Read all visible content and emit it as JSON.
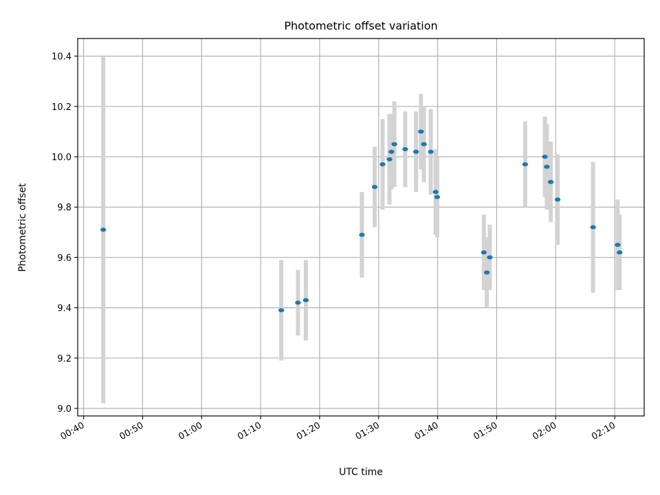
{
  "chart_data": {
    "type": "scatter",
    "title": "Photometric offset variation",
    "xlabel": "UTC time",
    "ylabel": "Photometric offset",
    "xlim": [
      "00:39",
      "02:15"
    ],
    "ylim": [
      8.97,
      10.47
    ],
    "x_ticks": [
      "00:40",
      "00:50",
      "01:00",
      "01:10",
      "01:20",
      "01:30",
      "01:40",
      "01:50",
      "02:00",
      "02:10"
    ],
    "y_ticks": [
      9.0,
      9.2,
      9.4,
      9.6,
      9.8,
      10.0,
      10.2,
      10.4
    ],
    "grid": true,
    "colors": {
      "points": "#1f77b4",
      "errorbars": "#d3d3d3",
      "grid": "#b0b0b0"
    },
    "series": [
      {
        "points": [
          {
            "x": "00:43:20",
            "y": 9.71,
            "err": 0.69
          },
          {
            "x": "01:13:30",
            "y": 9.39,
            "err": 0.2
          },
          {
            "x": "01:16:20",
            "y": 9.42,
            "err": 0.13
          },
          {
            "x": "01:17:40",
            "y": 9.43,
            "err": 0.16
          },
          {
            "x": "01:27:10",
            "y": 9.69,
            "err": 0.17
          },
          {
            "x": "01:29:20",
            "y": 9.88,
            "err": 0.16
          },
          {
            "x": "01:30:40",
            "y": 9.97,
            "err": 0.18
          },
          {
            "x": "01:31:50",
            "y": 9.99,
            "err": 0.18
          },
          {
            "x": "01:32:10",
            "y": 10.02,
            "err": 0.15
          },
          {
            "x": "01:32:40",
            "y": 10.05,
            "err": 0.17
          },
          {
            "x": "01:34:30",
            "y": 10.03,
            "err": 0.15
          },
          {
            "x": "01:36:20",
            "y": 10.02,
            "err": 0.16
          },
          {
            "x": "01:37:10",
            "y": 10.1,
            "err": 0.15
          },
          {
            "x": "01:37:40",
            "y": 10.05,
            "err": 0.15
          },
          {
            "x": "01:38:50",
            "y": 10.02,
            "err": 0.17
          },
          {
            "x": "01:39:40",
            "y": 9.86,
            "err": 0.17
          },
          {
            "x": "01:39:55",
            "y": 9.84,
            "err": 0.16
          },
          {
            "x": "01:47:50",
            "y": 9.62,
            "err": 0.15
          },
          {
            "x": "01:48:20",
            "y": 9.54,
            "err": 0.14
          },
          {
            "x": "01:48:50",
            "y": 9.6,
            "err": 0.13
          },
          {
            "x": "01:54:50",
            "y": 9.97,
            "err": 0.17
          },
          {
            "x": "01:58:10",
            "y": 10.0,
            "err": 0.16
          },
          {
            "x": "01:58:30",
            "y": 9.96,
            "err": 0.17
          },
          {
            "x": "01:59:10",
            "y": 9.9,
            "err": 0.16
          },
          {
            "x": "02:00:20",
            "y": 9.83,
            "err": 0.18
          },
          {
            "x": "02:06:20",
            "y": 9.72,
            "err": 0.26
          },
          {
            "x": "02:10:30",
            "y": 9.65,
            "err": 0.18
          },
          {
            "x": "02:10:50",
            "y": 9.62,
            "err": 0.15
          }
        ]
      }
    ]
  }
}
